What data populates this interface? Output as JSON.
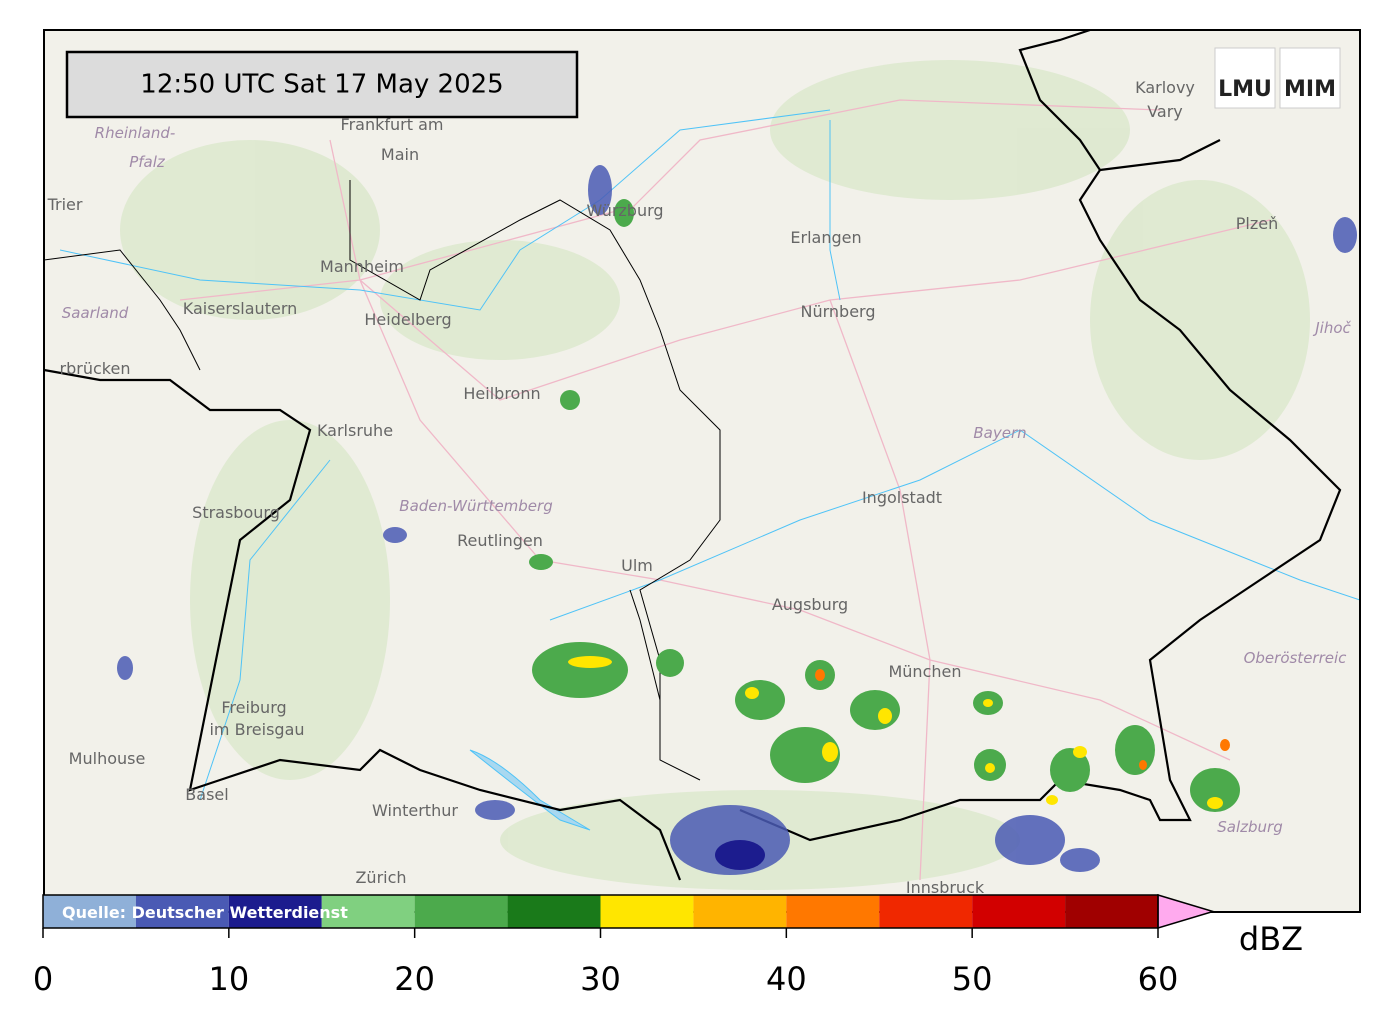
{
  "timestamp": "12:50 UTC  Sat 17 May 2025",
  "logos": [
    "LMU",
    "MIM"
  ],
  "places": [
    "Frankfurt am",
    "Main",
    "Rheinland-",
    "Pfalz",
    "Trier",
    "Mannheim",
    "Kaiserslautern",
    "Heidelberg",
    "Saarland",
    "rbrücken",
    "Heilbronn",
    "Karlsruhe",
    "Strasbourg",
    "Baden-Württemberg",
    "Reutlingen",
    "Ulm",
    "Augsburg",
    "München",
    "Freiburg",
    "im Breisgau",
    "Mulhouse",
    "Basel",
    "Winterthur",
    "Zürich",
    "Innsbruck",
    "Salzburg",
    "Oberösterreic",
    "Bayern",
    "Ingolstadt",
    "Nürnberg",
    "Erlangen",
    "Würzburg",
    "Plzeň",
    "Jihoč",
    "Karlovy",
    "Vary"
  ],
  "colorbar": {
    "source": "Quelle: Deutscher Wetterdienst",
    "unit": "dBZ",
    "xlim": [
      0,
      60
    ],
    "bounds": [
      0,
      5,
      10,
      15,
      20,
      25,
      30,
      35,
      40,
      45,
      50,
      55,
      60
    ],
    "colors": [
      "#8fb0d8",
      "#4a5ab4",
      "#1c1c8e",
      "#80d080",
      "#4caa4c",
      "#1a7a1a",
      "#ffe600",
      "#ffb400",
      "#ff7800",
      "#f02800",
      "#d20000",
      "#a00000"
    ],
    "extend_color": "#ffaaee",
    "xticks": [
      0,
      10,
      20,
      30,
      40,
      50,
      60
    ]
  }
}
